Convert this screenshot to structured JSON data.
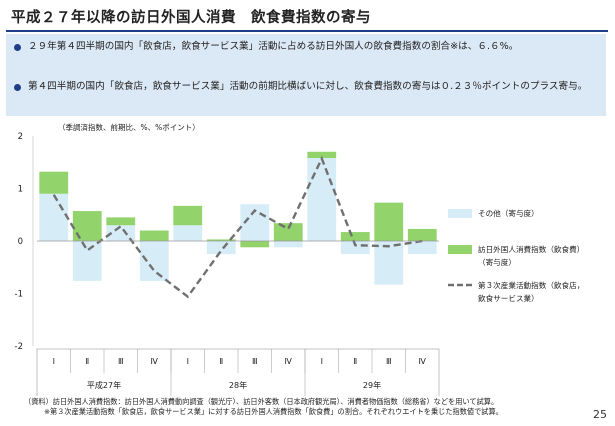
{
  "title": "平成２７年以降の訪日外国人消費　飲食費指数の寄与",
  "summary": {
    "bullets": [
      "２９年第４四半期の国内「飲食店，飲食サービス業」活動に占める訪日外国人の飲食費指数の割合※は、６.６%。",
      "第４四半期の国内「飲食店，飲食サービス業」活動の前期比横ばいに対し、飲食費指数の寄与は０.２３％ポイントのプラス寄与。"
    ]
  },
  "chart_data": {
    "type": "bar",
    "unit_note": "（季調済指数、前期比、%、%ポイント）",
    "categories": [
      "Ⅰ",
      "Ⅱ",
      "Ⅲ",
      "Ⅳ",
      "Ⅰ",
      "Ⅱ",
      "Ⅲ",
      "Ⅳ",
      "Ⅰ",
      "Ⅱ",
      "Ⅲ",
      "Ⅳ"
    ],
    "year_groups": [
      {
        "label": "平成27年",
        "start": 0,
        "end": 3
      },
      {
        "label": "28年",
        "start": 4,
        "end": 7
      },
      {
        "label": "29年",
        "start": 8,
        "end": 11
      }
    ],
    "ylim": [
      -2,
      2
    ],
    "yticks": [
      2,
      1,
      0,
      -1,
      -2
    ],
    "series": [
      {
        "name": "その他（寄与度）",
        "kind": "bar",
        "color": "#d6ecf7",
        "values": [
          0.9,
          -0.76,
          0.3,
          -0.76,
          0.3,
          -0.25,
          0.7,
          -0.12,
          1.58,
          -0.25,
          -0.83,
          -0.25
        ]
      },
      {
        "name": "訪日外国人消費指数（飲食費）\n（寄与度）",
        "kind": "bar",
        "color": "#92d36b",
        "values": [
          0.42,
          0.57,
          0.15,
          0.2,
          0.37,
          0.03,
          -0.12,
          0.34,
          0.12,
          0.17,
          0.73,
          0.23
        ]
      },
      {
        "name": "第３次産業活動指数（飲食店，\n飲食サービス業）",
        "kind": "line",
        "color": "#707070",
        "values": [
          0.88,
          -0.18,
          0.28,
          -0.57,
          -1.06,
          -0.18,
          0.58,
          0.23,
          1.57,
          -0.08,
          -0.1,
          0.0
        ]
      }
    ]
  },
  "footnotes": [
    "（資料）訪日外国人消費指数：訪日外国人消費動向調査（観光庁）、訪日外客数（日本政府観光局）、消費者物価指数（総務省）などを用いて試算。",
    "※第３次産業活動指数「飲食店，飲食サービス業」に対する訪日外国人消費指数「飲食費」の割合。それぞれウエイトを乗じた指数値で試算。"
  ],
  "page_number": "25"
}
